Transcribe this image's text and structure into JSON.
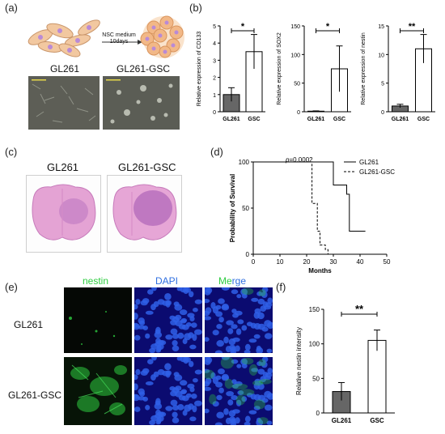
{
  "panel_labels": {
    "a": "(a)",
    "b": "(b)",
    "c": "(c)",
    "d": "(d)",
    "e": "(e)",
    "f": "(f)"
  },
  "panel_a": {
    "arrow_label_line1": "NSC medium",
    "arrow_label_line2": "10days",
    "left_title": "GL261",
    "right_title": "GL261-GSC"
  },
  "panel_c": {
    "left_title": "GL261",
    "right_title": "GL261-GSC"
  },
  "panel_e": {
    "col_headers": [
      "nestin",
      "DAPI",
      "Merge"
    ],
    "merge_part1": "Me",
    "merge_part2": "rge",
    "row_labels": [
      "GL261",
      "GL261-GSC"
    ],
    "colors": {
      "nestin": "#2ecc40",
      "dapi": "#2f6fe0"
    }
  },
  "chart_data": [
    {
      "type": "bar",
      "panel": "b1",
      "categories": [
        "GL261",
        "GSC"
      ],
      "values": [
        1.0,
        3.5
      ],
      "errors": [
        0.4,
        1.0
      ],
      "ylabel": "Relative expression of CD133",
      "ylim": [
        0,
        5
      ],
      "yticks": [
        0,
        1,
        2,
        3,
        4,
        5
      ],
      "significance": "*",
      "bar_fills": [
        "#666666",
        "#ffffff"
      ]
    },
    {
      "type": "bar",
      "panel": "b2",
      "categories": [
        "GL261",
        "GSC"
      ],
      "values": [
        1,
        75
      ],
      "errors": [
        0.5,
        40
      ],
      "ylabel": "Relative expression of SOX2",
      "ylim": [
        0,
        150
      ],
      "yticks": [
        0,
        50,
        100,
        150
      ],
      "significance": "*",
      "bar_fills": [
        "#666666",
        "#ffffff"
      ]
    },
    {
      "type": "bar",
      "panel": "b3",
      "categories": [
        "GL261",
        "GSC"
      ],
      "values": [
        1.0,
        11.0
      ],
      "errors": [
        0.3,
        2.5
      ],
      "ylabel": "Relative expression of nestin",
      "ylim": [
        0,
        15
      ],
      "yticks": [
        0,
        5,
        10,
        15
      ],
      "significance": "**",
      "bar_fills": [
        "#666666",
        "#ffffff"
      ]
    },
    {
      "type": "line",
      "panel": "d",
      "ylabel": "Probability of Survival",
      "xlabel": "Months",
      "xlim": [
        0,
        50
      ],
      "ylim": [
        0,
        100
      ],
      "xticks": [
        0,
        10,
        20,
        30,
        40,
        50
      ],
      "yticks": [
        0,
        50,
        100
      ],
      "annotation": "p=0.0002",
      "series": [
        {
          "name": "GL261",
          "style": "solid",
          "x": [
            0,
            28,
            30,
            35,
            36,
            42
          ],
          "y": [
            100,
            100,
            75,
            65,
            25,
            25
          ]
        },
        {
          "name": "GL261-GSC",
          "style": "dashed",
          "x": [
            0,
            21,
            22,
            24,
            25,
            27,
            28
          ],
          "y": [
            100,
            100,
            55,
            25,
            10,
            5,
            0
          ]
        }
      ]
    },
    {
      "type": "bar",
      "panel": "f",
      "categories": [
        "GL261",
        "GSC"
      ],
      "values": [
        31,
        105
      ],
      "errors": [
        13,
        15
      ],
      "ylabel": "Relative nestin intensity",
      "ylim": [
        0,
        150
      ],
      "yticks": [
        0,
        50,
        100,
        150
      ],
      "significance": "**",
      "bar_fills": [
        "#666666",
        "#ffffff"
      ]
    }
  ]
}
